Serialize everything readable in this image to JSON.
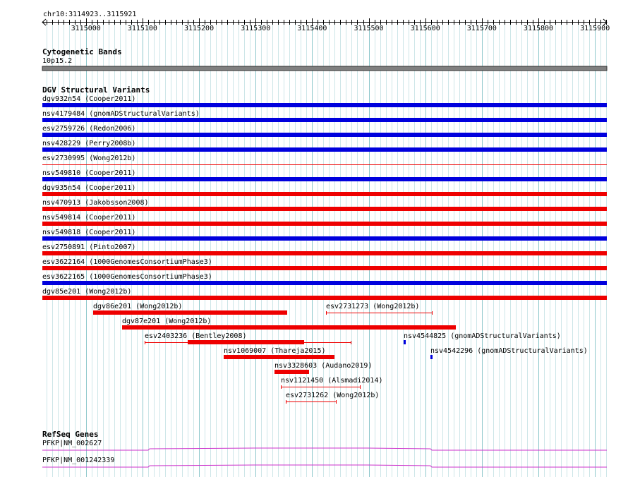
{
  "ruler": {
    "locus": "chr10:3114923..3115921",
    "start": 3114923,
    "end": 3115921,
    "ticks": [
      "3115000",
      "3115100",
      "3115200",
      "3115300",
      "3115400",
      "3115500",
      "3115600",
      "3115700",
      "3115800",
      "3115900"
    ]
  },
  "cytoband": {
    "title": "Cytogenetic Bands",
    "band": "10p15.2"
  },
  "dgv": {
    "title": "DGV Structural Variants",
    "colors": {
      "blue": "#0000dd",
      "red": "#ee0000"
    },
    "variants": [
      {
        "id": "dgv932n54",
        "study": "Cooper2011",
        "label": "dgv932n54 (Cooper2011)",
        "color": "blue",
        "style": "thick",
        "start": 3114923,
        "end": 3115921
      },
      {
        "id": "nsv4179484",
        "study": "gnomADStructuralVariants",
        "label": "nsv4179484 (gnomADStructuralVariants)",
        "color": "blue",
        "style": "thick",
        "start": 3114923,
        "end": 3115921
      },
      {
        "id": "esv2759726",
        "study": "Redon2006",
        "label": "esv2759726 (Redon2006)",
        "color": "blue",
        "style": "thick",
        "start": 3114923,
        "end": 3115921
      },
      {
        "id": "nsv428229",
        "study": "Perry2008b",
        "label": "nsv428229 (Perry2008b)",
        "color": "blue",
        "style": "thick",
        "start": 3114923,
        "end": 3115921
      },
      {
        "id": "esv2730995",
        "study": "Wong2012b",
        "label": "esv2730995 (Wong2012b)",
        "color": "red",
        "style": "thin",
        "start": 3114923,
        "end": 3115921
      },
      {
        "id": "nsv549810",
        "study": "Cooper2011",
        "label": "nsv549810 (Cooper2011)",
        "color": "blue",
        "style": "thick",
        "start": 3114923,
        "end": 3115921
      },
      {
        "id": "dgv935n54",
        "study": "Cooper2011",
        "label": "dgv935n54 (Cooper2011)",
        "color": "red",
        "style": "thick",
        "start": 3114923,
        "end": 3115921
      },
      {
        "id": "nsv470913",
        "study": "Jakobsson2008",
        "label": "nsv470913 (Jakobsson2008)",
        "color": "red",
        "style": "thick",
        "start": 3114923,
        "end": 3115921
      },
      {
        "id": "nsv549814",
        "study": "Cooper2011",
        "label": "nsv549814 (Cooper2011)",
        "color": "red",
        "style": "thick",
        "start": 3114923,
        "end": 3115921
      },
      {
        "id": "nsv549818",
        "study": "Cooper2011",
        "label": "nsv549818 (Cooper2011)",
        "color": "blue",
        "style": "thick",
        "start": 3114923,
        "end": 3115921
      },
      {
        "id": "esv2750891",
        "study": "Pinto2007",
        "label": "esv2750891 (Pinto2007)",
        "color": "red",
        "style": "thick",
        "start": 3114923,
        "end": 3115921
      },
      {
        "id": "esv3622164",
        "study": "1000GenomesConsortiumPhase3",
        "label": "esv3622164 (1000GenomesConsortiumPhase3)",
        "color": "red",
        "style": "thick",
        "start": 3114923,
        "end": 3115921
      },
      {
        "id": "esv3622165",
        "study": "1000GenomesConsortiumPhase3",
        "label": "esv3622165 (1000GenomesConsortiumPhase3)",
        "color": "blue",
        "style": "thick",
        "start": 3114923,
        "end": 3115921
      },
      {
        "id": "dgv85e201",
        "study": "Wong2012b",
        "label": "dgv85e201 (Wong2012b)",
        "color": "red",
        "style": "thick",
        "start": 3114923,
        "end": 3115921
      },
      {
        "id": "dgv86e201",
        "study": "Wong2012b",
        "label": "dgv86e201 (Wong2012b)",
        "color": "red",
        "style": "thick",
        "start": 3115013,
        "end": 3115356
      },
      {
        "id": "esv2731273",
        "study": "Wong2012b",
        "label": "esv2731273 (Wong2012b)",
        "color": "red",
        "style": "thin",
        "start": 3115425,
        "end": 3115611
      },
      {
        "id": "dgv87e201",
        "study": "Wong2012b",
        "label": "dgv87e201 (Wong2012b)",
        "color": "red",
        "style": "thick",
        "start": 3115064,
        "end": 3115654
      },
      {
        "id": "esv2403236",
        "study": "Bentley2008",
        "label": "esv2403236 (Bentley2008)",
        "color": "red",
        "style": "mixed",
        "start": 3115104,
        "end": 3115468,
        "thick_start": 3115180,
        "thick_end": 3115386
      },
      {
        "id": "nsv4544825",
        "study": "gnomADStructuralVariants",
        "label": "nsv4544825 (gnomADStructuralVariants)",
        "color": "blue",
        "style": "thick",
        "start": 3115562,
        "end": 3115565
      },
      {
        "id": "nsv1069007",
        "study": "Thareja2015",
        "label": "nsv1069007 (Thareja2015)",
        "color": "red",
        "style": "thick",
        "start": 3115244,
        "end": 3115440
      },
      {
        "id": "nsv4542296",
        "study": "gnomADStructuralVariants",
        "label": "nsv4542296 (gnomADStructuralVariants)",
        "color": "blue",
        "style": "thick",
        "start": 3115609,
        "end": 3115612
      },
      {
        "id": "nsv3328603",
        "study": "Audano2019",
        "label": "nsv3328603 (Audano2019)",
        "color": "red",
        "style": "thick",
        "start": 3115334,
        "end": 3115394
      },
      {
        "id": "nsv1121450",
        "study": "Alsmadi2014",
        "label": "nsv1121450 (Alsmadi2014)",
        "color": "red",
        "style": "thin",
        "start": 3115345,
        "end": 3115484
      },
      {
        "id": "esv2731262",
        "study": "Wong2012b",
        "label": "esv2731262 (Wong2012b)",
        "color": "red",
        "style": "thin",
        "start": 3115354,
        "end": 3115442
      }
    ]
  },
  "refseq": {
    "title": "RefSeq Genes",
    "color": "#cc33cc",
    "genes": [
      {
        "label": "PFKP|NM_002627"
      },
      {
        "label": "PFKP|NM_001242339"
      }
    ]
  }
}
